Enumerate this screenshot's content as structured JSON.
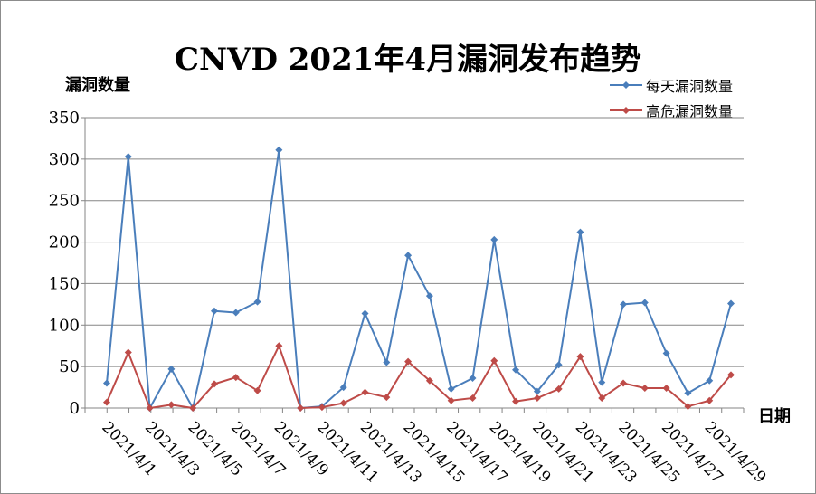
{
  "chart_data": {
    "type": "line",
    "title": "CNVD 2021年4月漏洞发布趋势",
    "xlabel": "日期",
    "ylabel": "漏洞数量",
    "ylim": [
      0,
      350
    ],
    "yticks": [
      0,
      50,
      100,
      150,
      200,
      250,
      300,
      350
    ],
    "grid": true,
    "legend_position": "top-right",
    "categories": [
      "2021/4/1",
      "2021/4/2",
      "2021/4/3",
      "2021/4/4",
      "2021/4/5",
      "2021/4/6",
      "2021/4/7",
      "2021/4/8",
      "2021/4/9",
      "2021/4/10",
      "2021/4/11",
      "2021/4/12",
      "2021/4/13",
      "2021/4/14",
      "2021/4/15",
      "2021/4/16",
      "2021/4/17",
      "2021/4/18",
      "2021/4/19",
      "2021/4/20",
      "2021/4/21",
      "2021/4/22",
      "2021/4/23",
      "2021/4/24",
      "2021/4/25",
      "2021/4/26",
      "2021/4/27",
      "2021/4/28",
      "2021/4/29",
      "2021/4/30"
    ],
    "tick_labels": [
      "2021/4/1",
      "2021/4/3",
      "2021/4/5",
      "2021/4/7",
      "2021/4/9",
      "2021/4/11",
      "2021/4/13",
      "2021/4/15",
      "2021/4/17",
      "2021/4/19",
      "2021/4/21",
      "2021/4/23",
      "2021/4/25",
      "2021/4/27",
      "2021/4/29"
    ],
    "series": [
      {
        "name": "每天漏洞数量",
        "color": "#4a7ebb",
        "values": [
          30,
          303,
          0,
          47,
          0,
          117,
          115,
          128,
          311,
          0,
          2,
          25,
          114,
          55,
          184,
          135,
          23,
          36,
          203,
          46,
          20,
          52,
          212,
          31,
          125,
          127,
          66,
          18,
          33,
          126
        ]
      },
      {
        "name": "高危漏洞数量",
        "color": "#be4b48",
        "values": [
          7,
          67,
          0,
          4,
          0,
          29,
          37,
          21,
          75,
          0,
          1,
          6,
          19,
          13,
          56,
          33,
          9,
          12,
          57,
          8,
          12,
          23,
          62,
          12,
          30,
          24,
          24,
          2,
          9,
          40
        ]
      }
    ]
  }
}
